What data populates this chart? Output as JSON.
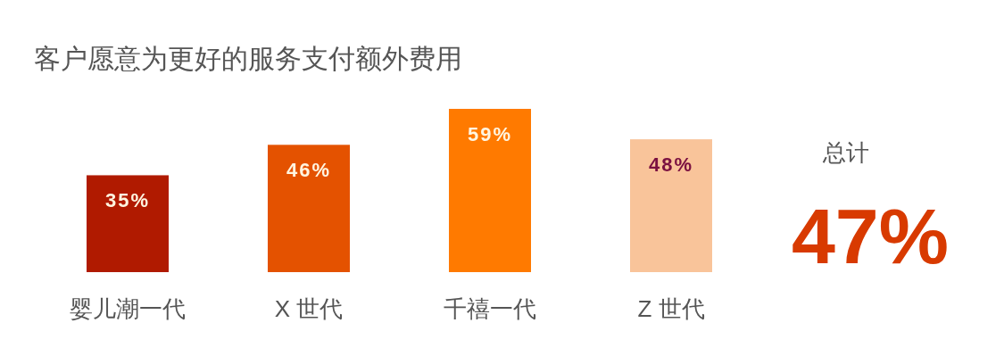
{
  "chart_data": {
    "type": "bar",
    "title": "客户愿意为更好的服务支付额外费用",
    "categories": [
      "婴儿潮一代",
      "X 世代",
      "千禧一代",
      "Z 世代"
    ],
    "values": [
      35,
      46,
      59,
      48
    ],
    "colors": [
      "#b01a00",
      "#e45200",
      "#ff7a00",
      "#f9c49a"
    ],
    "value_labels": [
      "35%",
      "46%",
      "59%",
      "48%"
    ],
    "annotations": [
      "总计",
      "47%"
    ]
  }
}
